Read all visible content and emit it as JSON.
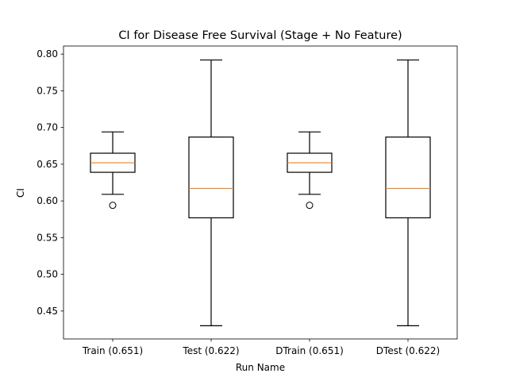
{
  "chart_data": {
    "type": "box",
    "title": "CI for Disease Free Survival (Stage + No Feature)",
    "xlabel": "Run Name",
    "ylabel": "CI",
    "ylim": [
      0.412,
      0.811
    ],
    "yticks": [
      0.45,
      0.5,
      0.55,
      0.6,
      0.65,
      0.7,
      0.75,
      0.8
    ],
    "ytick_labels": [
      "0.45",
      "0.50",
      "0.55",
      "0.60",
      "0.65",
      "0.70",
      "0.75",
      "0.80"
    ],
    "grid": false,
    "categories": [
      "Train (0.651)",
      "Test (0.622)",
      "DTrain (0.651)",
      "DTest (0.622)"
    ],
    "boxes": [
      {
        "whisker_low": 0.609,
        "q1": 0.639,
        "median": 0.652,
        "q3": 0.665,
        "whisker_high": 0.694,
        "outliers": [
          0.594
        ]
      },
      {
        "whisker_low": 0.43,
        "q1": 0.577,
        "median": 0.617,
        "q3": 0.687,
        "whisker_high": 0.792,
        "outliers": []
      },
      {
        "whisker_low": 0.609,
        "q1": 0.639,
        "median": 0.652,
        "q3": 0.665,
        "whisker_high": 0.694,
        "outliers": [
          0.594
        ]
      },
      {
        "whisker_low": 0.43,
        "q1": 0.577,
        "median": 0.617,
        "q3": 0.687,
        "whisker_high": 0.792,
        "outliers": []
      }
    ],
    "colors": {
      "box": "#000000",
      "median": "#ff7f0e",
      "outlier": "#000000"
    }
  }
}
